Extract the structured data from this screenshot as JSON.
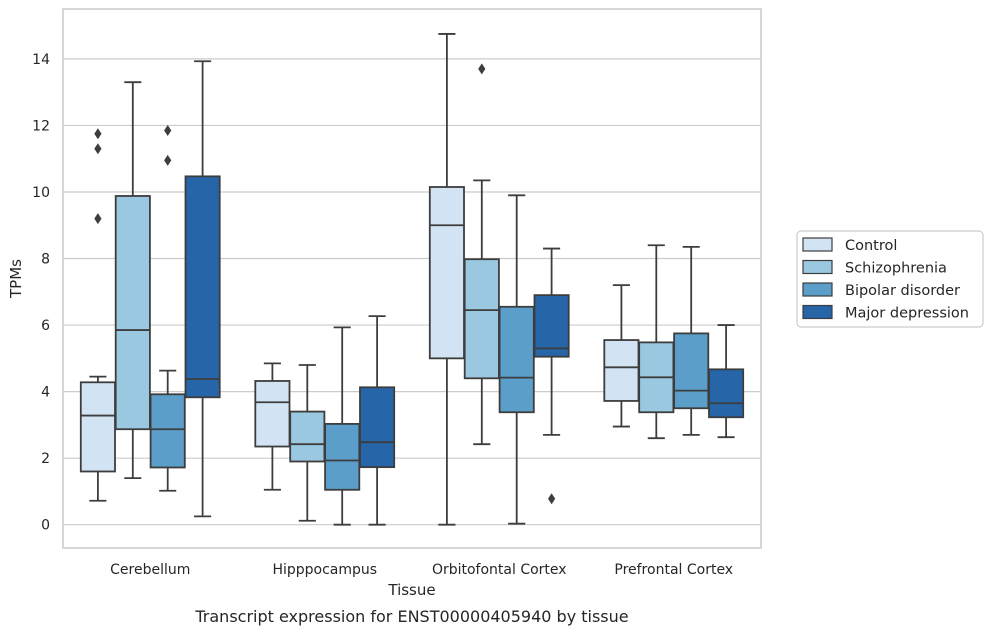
{
  "chart_data": {
    "type": "box",
    "xlabel": "Tissue",
    "ylabel": "TPMs",
    "caption": "Transcript expression for ENST00000405940 by tissue",
    "ylim": [
      -0.7,
      15.5
    ],
    "yticks": [
      0,
      2,
      4,
      6,
      8,
      10,
      12,
      14
    ],
    "grid": "horizontal",
    "legend_position": "right",
    "categories": [
      "Cerebellum",
      "Hipppocampus",
      "Orbitofontal Cortex",
      "Prefrontal Cortex"
    ],
    "series": [
      {
        "name": "Control",
        "color": "#d2e3f3",
        "boxes": [
          {
            "whislo": 0.72,
            "q1": 1.6,
            "med": 3.28,
            "q3": 4.28,
            "whishi": 4.45,
            "fliers": [
              9.2,
              11.3,
              11.75
            ]
          },
          {
            "whislo": 1.05,
            "q1": 2.35,
            "med": 3.68,
            "q3": 4.32,
            "whishi": 4.85,
            "fliers": []
          },
          {
            "whislo": 0.0,
            "q1": 5.0,
            "med": 9.0,
            "q3": 10.15,
            "whishi": 14.75,
            "fliers": []
          },
          {
            "whislo": 2.95,
            "q1": 3.72,
            "med": 4.73,
            "q3": 5.55,
            "whishi": 7.2,
            "fliers": []
          }
        ]
      },
      {
        "name": "Schizophrenia",
        "color": "#9ac8e0",
        "boxes": [
          {
            "whislo": 1.4,
            "q1": 2.87,
            "med": 5.85,
            "q3": 9.88,
            "whishi": 13.3,
            "fliers": []
          },
          {
            "whislo": 0.12,
            "q1": 1.9,
            "med": 2.42,
            "q3": 3.4,
            "whishi": 4.8,
            "fliers": []
          },
          {
            "whislo": 2.42,
            "q1": 4.4,
            "med": 6.45,
            "q3": 7.98,
            "whishi": 10.35,
            "fliers": [
              13.7
            ]
          },
          {
            "whislo": 2.6,
            "q1": 3.38,
            "med": 4.43,
            "q3": 5.48,
            "whishi": 8.4,
            "fliers": []
          }
        ]
      },
      {
        "name": "Bipolar disorder",
        "color": "#5a9ec9",
        "boxes": [
          {
            "whislo": 1.02,
            "q1": 1.72,
            "med": 2.87,
            "q3": 3.92,
            "whishi": 4.63,
            "fliers": [
              10.95,
              11.85
            ]
          },
          {
            "whislo": 0.0,
            "q1": 1.05,
            "med": 1.93,
            "q3": 3.03,
            "whishi": 5.93,
            "fliers": []
          },
          {
            "whislo": 0.03,
            "q1": 3.38,
            "med": 4.42,
            "q3": 6.55,
            "whishi": 9.9,
            "fliers": []
          },
          {
            "whislo": 2.7,
            "q1": 3.5,
            "med": 4.03,
            "q3": 5.75,
            "whishi": 8.35,
            "fliers": []
          }
        ]
      },
      {
        "name": "Major depression",
        "color": "#2565a8",
        "boxes": [
          {
            "whislo": 0.25,
            "q1": 3.83,
            "med": 4.38,
            "q3": 10.47,
            "whishi": 13.93,
            "fliers": []
          },
          {
            "whislo": 0.0,
            "q1": 1.73,
            "med": 2.48,
            "q3": 4.13,
            "whishi": 6.27,
            "fliers": []
          },
          {
            "whislo": 2.7,
            "q1": 5.05,
            "med": 5.3,
            "q3": 6.9,
            "whishi": 8.3,
            "fliers": [
              0.78
            ]
          },
          {
            "whislo": 2.63,
            "q1": 3.23,
            "med": 3.65,
            "q3": 4.67,
            "whishi": 6.0,
            "fliers": []
          }
        ]
      }
    ]
  }
}
